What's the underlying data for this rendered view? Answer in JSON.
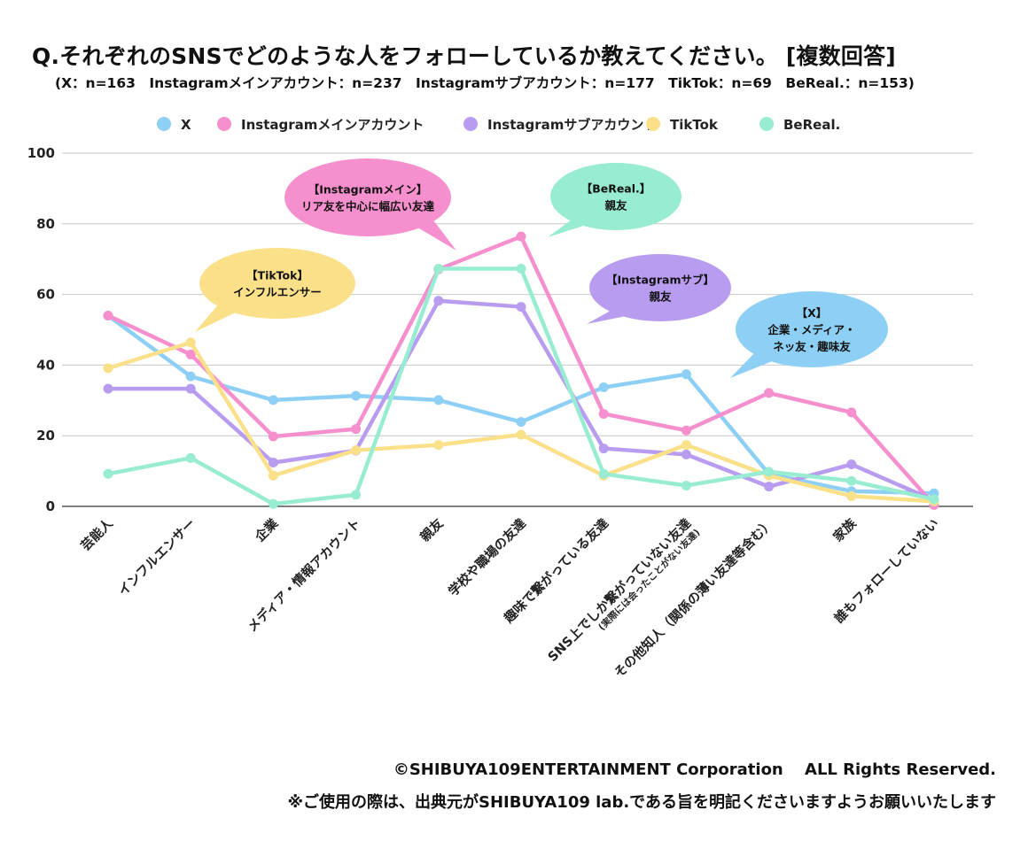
{
  "header": {
    "title": "Q.それぞれのSNSでどのような人をフォローしているか教えてください。 [複数回答]",
    "subtitle": "(X：n=163　Instagramメインアカウント：n=237　Instagramサブアカウント：n=177　TikTok：n=69　BeReal.：n=153)"
  },
  "footer": {
    "copyright": "©SHIBUYA109ENTERTAINMENT Corporation　 ALL Rights Reserved.",
    "notice": "※ご使用の際は、出典元がSHIBUYA109 lab.である旨を明記くださいますようお願いいたします"
  },
  "chart_data": {
    "type": "line",
    "ylim": [
      0,
      100
    ],
    "yticks": [
      0,
      20,
      40,
      60,
      80,
      100
    ],
    "grid": true,
    "legend_position": "top",
    "categories": [
      "芸能人",
      "インフルエンサー",
      "企業",
      "メディア・情報アカウント",
      "親友",
      "学校や職場の友達",
      "趣味で繋がっている友達",
      "SNS上でしか繋がっていない友達",
      "その他知人（関係の薄い友達等含む）",
      "家族",
      "誰もフォローしていない"
    ],
    "category_notes": {
      "SNS上でしか繋がっていない友達": "(実際には会ったことがない友達)"
    },
    "series": [
      {
        "name": "X",
        "color": "#8ed0f5",
        "values": [
          54.0,
          36.8,
          30.1,
          31.3,
          30.1,
          23.9,
          33.7,
          37.4,
          9.2,
          4.3,
          3.7
        ]
      },
      {
        "name": "Instagramメインアカウント",
        "color": "#f58fcd",
        "values": [
          54.0,
          43.0,
          19.8,
          21.9,
          67.1,
          76.4,
          26.2,
          21.5,
          32.1,
          26.6,
          0.4
        ]
      },
      {
        "name": "Instagramサブアカウント",
        "color": "#b89cf0",
        "values": [
          33.3,
          33.3,
          12.4,
          15.8,
          58.2,
          56.5,
          16.4,
          14.7,
          5.6,
          11.9,
          1.7
        ]
      },
      {
        "name": "TikTok",
        "color": "#fbe08a",
        "values": [
          39.1,
          46.4,
          8.7,
          15.9,
          17.4,
          20.3,
          8.7,
          17.4,
          8.7,
          2.9,
          1.4
        ]
      },
      {
        "name": "BeReal.",
        "color": "#97ecd2",
        "values": [
          9.2,
          13.7,
          0.7,
          3.3,
          67.3,
          67.3,
          9.2,
          5.9,
          9.8,
          7.2,
          2.0
        ]
      }
    ],
    "annotations": [
      {
        "title": "【Instagramメイン】",
        "lines": [
          "リア友を中心に幅広い友達"
        ],
        "color": "#f58fcd"
      },
      {
        "title": "【BeReal.】",
        "lines": [
          "親友"
        ],
        "color": "#97ecd2"
      },
      {
        "title": "【TikTok】",
        "lines": [
          "インフルエンサー"
        ],
        "color": "#fbe08a"
      },
      {
        "title": "【Instagramサブ】",
        "lines": [
          "親友"
        ],
        "color": "#b89cf0"
      },
      {
        "title": "【X】",
        "lines": [
          "企業・メディア・",
          "ネッ友・趣味友"
        ],
        "color": "#8ed0f5"
      }
    ]
  }
}
